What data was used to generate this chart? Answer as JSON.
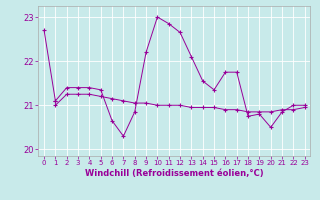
{
  "x": [
    0,
    1,
    2,
    3,
    4,
    5,
    6,
    7,
    8,
    9,
    10,
    11,
    12,
    13,
    14,
    15,
    16,
    17,
    18,
    19,
    20,
    21,
    22,
    23
  ],
  "line1": [
    22.7,
    21.1,
    null,
    null,
    null,
    null,
    null,
    null,
    null,
    null,
    null,
    null,
    null,
    null,
    null,
    null,
    null,
    null,
    null,
    null,
    null,
    null,
    null,
    null
  ],
  "line2": [
    null,
    21.1,
    21.4,
    21.4,
    21.4,
    21.35,
    20.65,
    20.3,
    20.85,
    22.2,
    23.0,
    22.85,
    22.65,
    22.1,
    21.55,
    21.35,
    21.75,
    21.75,
    20.75,
    20.8,
    20.5,
    20.85,
    21.0,
    21.0
  ],
  "line3": [
    null,
    21.0,
    21.25,
    21.25,
    21.25,
    21.2,
    21.15,
    21.1,
    21.05,
    21.05,
    21.0,
    21.0,
    21.0,
    20.95,
    20.95,
    20.95,
    20.9,
    20.9,
    20.85,
    20.85,
    20.85,
    20.9,
    20.9,
    20.95
  ],
  "line_color": "#990099",
  "bg_color": "#c8eaea",
  "grid_color": "#b0d8d8",
  "xlabel": "Windchill (Refroidissement éolien,°C)",
  "ylim": [
    19.85,
    23.25
  ],
  "xlim": [
    -0.5,
    23.5
  ],
  "yticks": [
    20,
    21,
    22,
    23
  ],
  "xticks": [
    0,
    1,
    2,
    3,
    4,
    5,
    6,
    7,
    8,
    9,
    10,
    11,
    12,
    13,
    14,
    15,
    16,
    17,
    18,
    19,
    20,
    21,
    22,
    23
  ]
}
